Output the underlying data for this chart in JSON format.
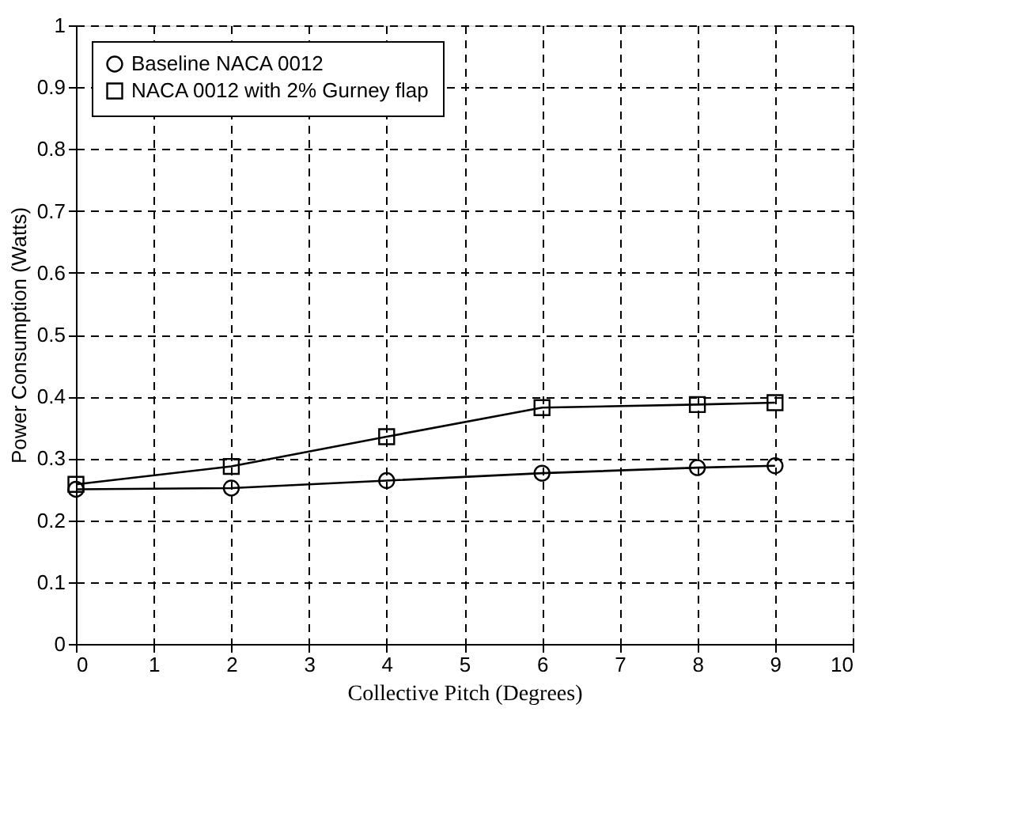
{
  "chart_data": {
    "type": "line",
    "xlabel": "Collective Pitch (Degrees)",
    "ylabel": "Power Consumption (Watts)",
    "x": [
      0,
      2,
      4,
      6,
      8,
      9
    ],
    "series": [
      {
        "name": "Baseline NACA 0012",
        "color": "#000000",
        "marker": "circle",
        "values": [
          0.25,
          0.252,
          0.264,
          0.276,
          0.285,
          0.288
        ]
      },
      {
        "name": "NACA 0012 with 2% Gurney flap",
        "color": "#000000",
        "marker": "square",
        "values": [
          0.258,
          0.287,
          0.335,
          0.382,
          0.387,
          0.39
        ]
      }
    ],
    "xlim": [
      0,
      10
    ],
    "xticks": [
      0,
      1,
      2,
      3,
      4,
      5,
      6,
      7,
      8,
      9,
      10
    ],
    "ylim": [
      0,
      1
    ],
    "yticks": [
      0,
      0.1,
      0.2,
      0.3,
      0.4,
      0.5,
      0.6,
      0.7,
      0.8,
      0.9,
      1
    ],
    "grid": true,
    "legend": "top left",
    "line_style": "solid"
  }
}
